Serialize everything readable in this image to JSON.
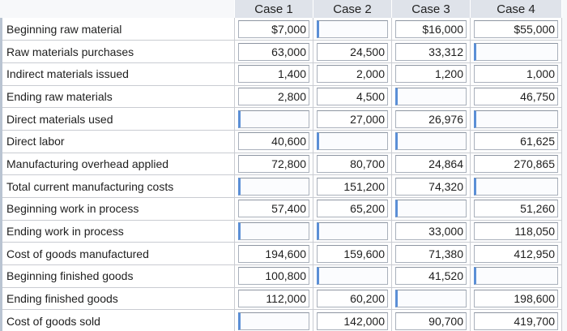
{
  "headers": [
    "",
    "Case 1",
    "Case 2",
    "Case 3",
    "Case 4"
  ],
  "rows": [
    {
      "label": "Beginning raw material",
      "cells": [
        {
          "v": "$7,000",
          "input": true
        },
        {
          "v": "",
          "input": true
        },
        {
          "v": "$16,000",
          "input": true
        },
        {
          "v": "$55,000",
          "input": true
        }
      ]
    },
    {
      "label": "Raw materials purchases",
      "cells": [
        {
          "v": "63,000",
          "input": true
        },
        {
          "v": "24,500",
          "input": true
        },
        {
          "v": "33,312",
          "input": true
        },
        {
          "v": "",
          "input": true
        }
      ]
    },
    {
      "label": "Indirect materials issued",
      "cells": [
        {
          "v": "1,400",
          "input": true
        },
        {
          "v": "2,000",
          "input": true
        },
        {
          "v": "1,200",
          "input": true
        },
        {
          "v": "1,000",
          "input": true
        }
      ]
    },
    {
      "label": "Ending raw materials",
      "cells": [
        {
          "v": "2,800",
          "input": true
        },
        {
          "v": "4,500",
          "input": true
        },
        {
          "v": "",
          "input": true
        },
        {
          "v": "46,750",
          "input": true
        }
      ]
    },
    {
      "label": "Direct materials used",
      "cells": [
        {
          "v": "",
          "input": true
        },
        {
          "v": "27,000",
          "input": true
        },
        {
          "v": "26,976",
          "input": true
        },
        {
          "v": "",
          "input": true
        }
      ]
    },
    {
      "label": "Direct labor",
      "cells": [
        {
          "v": "40,600",
          "input": true
        },
        {
          "v": "",
          "input": true
        },
        {
          "v": "",
          "input": true
        },
        {
          "v": "61,625",
          "input": true
        }
      ]
    },
    {
      "label": "Manufacturing overhead applied",
      "cells": [
        {
          "v": "72,800",
          "input": true
        },
        {
          "v": "80,700",
          "input": true
        },
        {
          "v": "24,864",
          "input": true
        },
        {
          "v": "270,865",
          "input": true
        }
      ]
    },
    {
      "label": "Total current manufacturing costs",
      "cells": [
        {
          "v": "",
          "input": true
        },
        {
          "v": "151,200",
          "input": true
        },
        {
          "v": "74,320",
          "input": true
        },
        {
          "v": "",
          "input": true
        }
      ]
    },
    {
      "label": "Beginning work in process",
      "cells": [
        {
          "v": "57,400",
          "input": true
        },
        {
          "v": "65,200",
          "input": true
        },
        {
          "v": "",
          "input": true
        },
        {
          "v": "51,260",
          "input": true
        }
      ]
    },
    {
      "label": "Ending work in process",
      "cells": [
        {
          "v": "",
          "input": true
        },
        {
          "v": "",
          "input": true
        },
        {
          "v": "33,000",
          "input": true
        },
        {
          "v": "118,050",
          "input": true
        }
      ]
    },
    {
      "label": "Cost of goods manufactured",
      "cells": [
        {
          "v": "194,600",
          "input": true
        },
        {
          "v": "159,600",
          "input": true
        },
        {
          "v": "71,380",
          "input": true
        },
        {
          "v": "412,950",
          "input": true
        }
      ]
    },
    {
      "label": "Beginning finished goods",
      "cells": [
        {
          "v": "100,800",
          "input": true
        },
        {
          "v": "",
          "input": true
        },
        {
          "v": "41,520",
          "input": true
        },
        {
          "v": "",
          "input": true
        }
      ]
    },
    {
      "label": "Ending finished goods",
      "cells": [
        {
          "v": "112,000",
          "input": true
        },
        {
          "v": "60,200",
          "input": true
        },
        {
          "v": "",
          "input": true
        },
        {
          "v": "198,600",
          "input": true
        }
      ]
    },
    {
      "label": "Cost of goods sold",
      "cells": [
        {
          "v": "",
          "input": true
        },
        {
          "v": "142,000",
          "input": true
        },
        {
          "v": "90,700",
          "input": true
        },
        {
          "v": "419,700",
          "input": true
        }
      ]
    }
  ]
}
